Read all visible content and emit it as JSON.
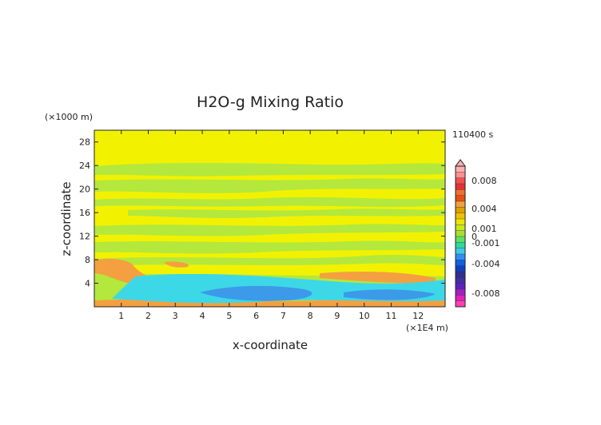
{
  "chart_data": {
    "type": "heatmap",
    "title": "H2O-g Mixing Ratio",
    "time_label": "110400 s",
    "xlabel": "x-coordinate",
    "ylabel": "z-coordinate",
    "x_unit": "(×1E4 m)",
    "y_unit": "(×1000 m)",
    "xlim": [
      0,
      13
    ],
    "ylim": [
      0,
      30
    ],
    "x_ticks": [
      "1",
      "2",
      "3",
      "4",
      "5",
      "6",
      "7",
      "8",
      "9",
      "10",
      "11",
      "12"
    ],
    "y_ticks": [
      "4",
      "8",
      "12",
      "16",
      "20",
      "24",
      "28"
    ],
    "colorbar_labels": [
      {
        "value": 0.008,
        "text": "0.008"
      },
      {
        "value": 0.004,
        "text": "0.004"
      },
      {
        "value": 0.001,
        "text": "0.001"
      },
      {
        "value": 0,
        "text": "0"
      },
      {
        "value": -0.001,
        "text": "-0.001"
      },
      {
        "value": -0.004,
        "text": "-0.004"
      },
      {
        "value": -0.008,
        "text": "-0.008"
      }
    ],
    "colors": {
      "background": "#f2f200",
      "green": "#b4e83c",
      "orange": "#f4a040",
      "cyan": "#3cd8e8",
      "blue": "#3c9ae8"
    }
  }
}
